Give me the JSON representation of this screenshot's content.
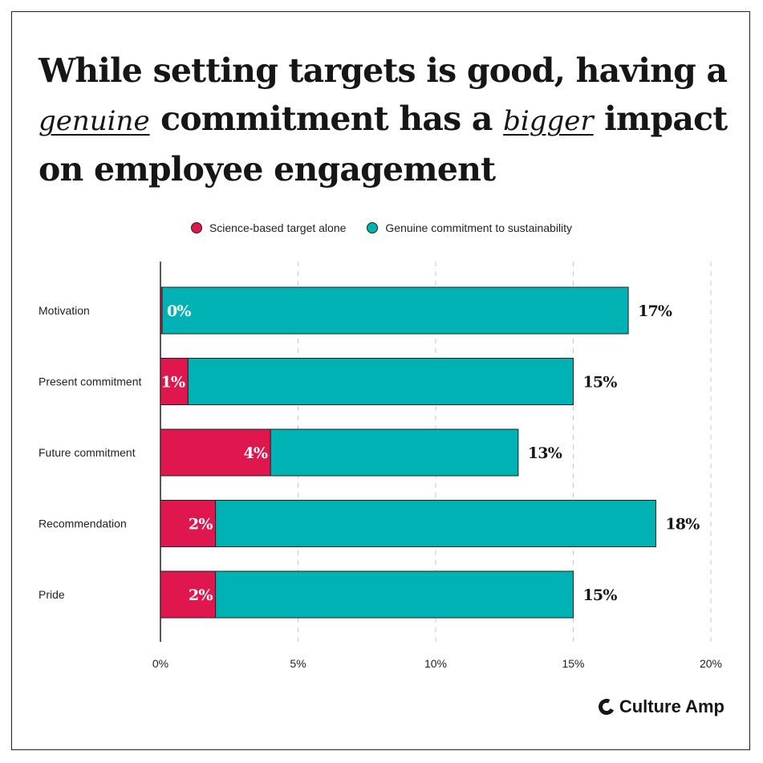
{
  "title": {
    "part1": "While setting targets is good, having a",
    "emph1": "genuine",
    "part2": "commitment has a",
    "emph2": "bigger",
    "part3": "impact",
    "part4": "on employee engagement"
  },
  "colors": {
    "series_target": "#e0174f",
    "series_commitment": "#00b2b3"
  },
  "brand": {
    "name": "Culture Amp",
    "icon": "culture-amp-logo-icon"
  },
  "chart_data": {
    "type": "bar",
    "orientation": "horizontal",
    "stacked": true,
    "categories": [
      "Motivation",
      "Present commitment",
      "Future commitment",
      "Recommendation",
      "Pride"
    ],
    "series": [
      {
        "name": "Science-based target alone",
        "values": [
          0,
          1,
          4,
          2,
          2
        ],
        "labels": [
          "0%",
          "1%",
          "4%",
          "2%",
          "2%"
        ]
      },
      {
        "name": "Genuine commitment to sustainability",
        "values": [
          17,
          14,
          9,
          16,
          13
        ],
        "labels": [
          "17%",
          "15%",
          "13%",
          "18%",
          "15%"
        ]
      }
    ],
    "totals": [
      17,
      15,
      13,
      18,
      15
    ],
    "xlim": [
      0,
      20
    ],
    "xticks": [
      0,
      5,
      10,
      15,
      20
    ],
    "xtick_labels": [
      "0%",
      "5%",
      "10%",
      "15%",
      "20%"
    ],
    "grid": "vertical-dashed",
    "legend": "top-center"
  }
}
